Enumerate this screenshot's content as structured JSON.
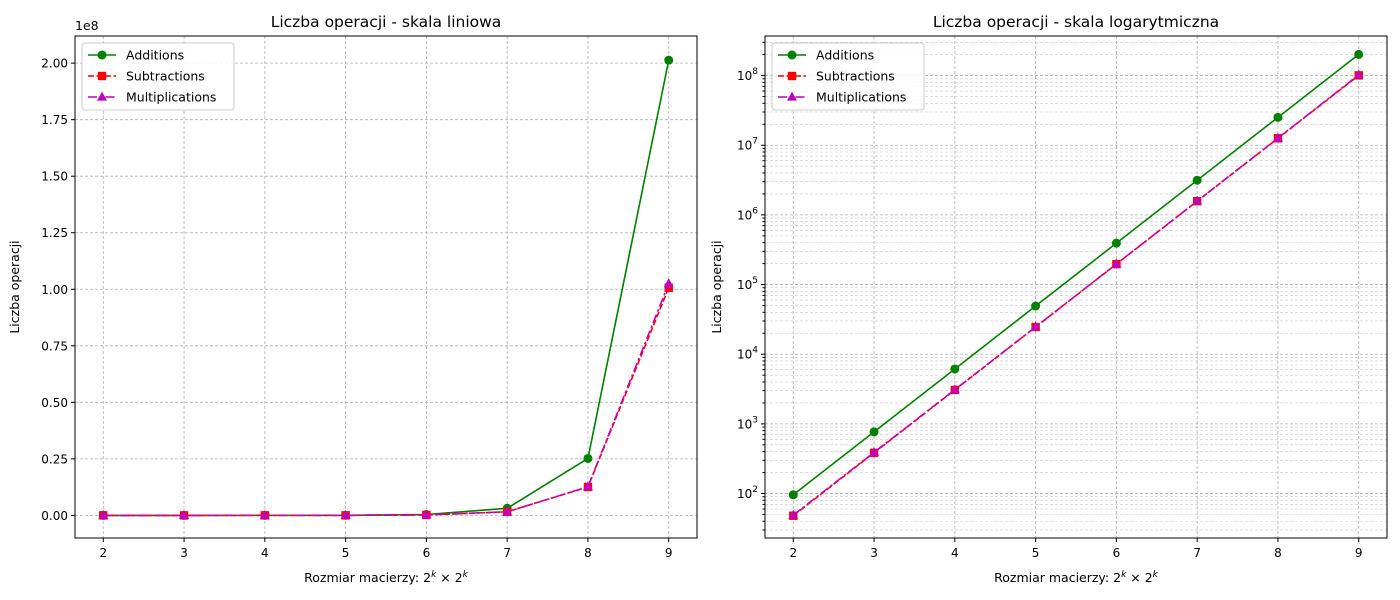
{
  "chart_data": [
    {
      "type": "line",
      "title": "Liczba operacji - skala liniowa",
      "xlabel": "Rozmiar macierzy: 2^k × 2^k",
      "xlabel_parts": {
        "prefix": "Rozmiar macierzy: ",
        "base1": "2",
        "exp1": "k",
        "times": " × ",
        "base2": "2",
        "exp2": "k"
      },
      "ylabel": "Liczba operacji",
      "yscale": "linear",
      "y_offset_label": "1e8",
      "x": [
        2,
        3,
        4,
        5,
        6,
        7,
        8,
        9
      ],
      "xlim": [
        1.65,
        9.35
      ],
      "ylim": [
        -10000000,
        212000000
      ],
      "x_ticks": [
        2,
        3,
        4,
        5,
        6,
        7,
        8,
        9
      ],
      "y_ticks": [
        0,
        25000000,
        50000000,
        75000000,
        100000000,
        125000000,
        150000000,
        175000000,
        200000000
      ],
      "y_tick_labels": [
        "0.00",
        "0.25",
        "0.50",
        "0.75",
        "1.00",
        "1.25",
        "1.50",
        "1.75",
        "2.00"
      ],
      "grid": true,
      "legend_position": "top-left",
      "series": [
        {
          "name": "Additions",
          "color": "#008000",
          "marker": "circle",
          "linestyle": "solid",
          "values": [
            96,
            768,
            6144,
            49152,
            393216,
            3145728,
            25165824,
            201326592
          ]
        },
        {
          "name": "Subtractions",
          "color": "#ff0000",
          "marker": "square",
          "linestyle": "dashed",
          "values": [
            48,
            384,
            3072,
            24576,
            196608,
            1572864,
            12582912,
            100663296
          ]
        },
        {
          "name": "Multiplications",
          "color": "#bf00bf",
          "marker": "triangle",
          "linestyle": "dashdot",
          "values": [
            49,
            390,
            3100,
            24700,
            197500,
            1580000,
            12650000,
            102500000
          ]
        }
      ]
    },
    {
      "type": "line",
      "title": "Liczba operacji - skala logarytmiczna",
      "xlabel": "Rozmiar macierzy: 2^k × 2^k",
      "xlabel_parts": {
        "prefix": "Rozmiar macierzy: ",
        "base1": "2",
        "exp1": "k",
        "times": " × ",
        "base2": "2",
        "exp2": "k"
      },
      "ylabel": "Liczba operacji",
      "yscale": "log",
      "x": [
        2,
        3,
        4,
        5,
        6,
        7,
        8,
        9
      ],
      "xlim": [
        1.65,
        9.35
      ],
      "ylim": [
        23,
        370000000
      ],
      "x_ticks": [
        2,
        3,
        4,
        5,
        6,
        7,
        8,
        9
      ],
      "y_ticks": [
        100,
        1000,
        10000,
        100000,
        1000000,
        10000000,
        100000000
      ],
      "y_tick_exponents": [
        "2",
        "3",
        "4",
        "5",
        "6",
        "7",
        "8"
      ],
      "y_tick_base": "10",
      "grid": true,
      "legend_position": "top-left",
      "series": [
        {
          "name": "Additions",
          "color": "#008000",
          "marker": "circle",
          "linestyle": "solid",
          "values": [
            96,
            768,
            6144,
            49152,
            393216,
            3145728,
            25165824,
            201326592
          ]
        },
        {
          "name": "Subtractions",
          "color": "#ff0000",
          "marker": "square",
          "linestyle": "dashed",
          "values": [
            48,
            384,
            3072,
            24576,
            196608,
            1572864,
            12582912,
            100663296
          ]
        },
        {
          "name": "Multiplications",
          "color": "#bf00bf",
          "marker": "triangle",
          "linestyle": "dashdot",
          "values": [
            49,
            390,
            3100,
            24700,
            197500,
            1580000,
            12650000,
            102500000
          ]
        }
      ]
    }
  ]
}
